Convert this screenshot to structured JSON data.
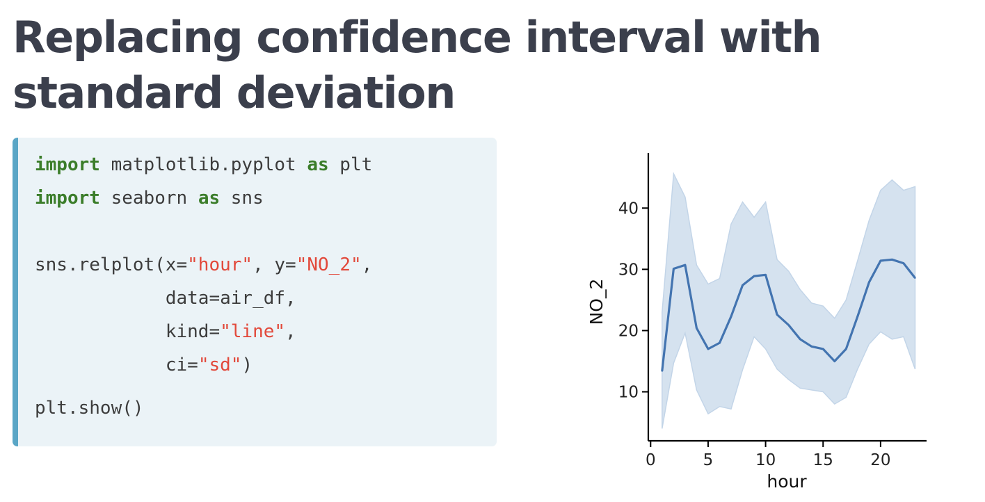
{
  "slide": {
    "title": "Replacing confidence interval with standard deviation"
  },
  "code": {
    "lines": [
      [
        {
          "t": "import",
          "c": "kw"
        },
        {
          "t": " matplotlib.pyplot "
        },
        {
          "t": "as",
          "c": "kw"
        },
        {
          "t": " plt"
        }
      ],
      [
        {
          "t": "import",
          "c": "kw"
        },
        {
          "t": " seaborn "
        },
        {
          "t": "as",
          "c": "kw"
        },
        {
          "t": " sns"
        }
      ],
      [],
      [
        {
          "t": "sns.relplot(x="
        },
        {
          "t": "\"hour\"",
          "c": "str"
        },
        {
          "t": ", y="
        },
        {
          "t": "\"NO_2\"",
          "c": "str"
        },
        {
          "t": ","
        }
      ],
      [
        {
          "t": "            data=air_df,"
        }
      ],
      [
        {
          "t": "            kind="
        },
        {
          "t": "\"line\"",
          "c": "str"
        },
        {
          "t": ","
        }
      ],
      [
        {
          "t": "            ci="
        },
        {
          "t": "\"sd\"",
          "c": "str"
        },
        {
          "t": ")"
        }
      ],
      [
        {
          "t": "plt.show()"
        }
      ]
    ]
  },
  "colors": {
    "line": "#4374b0",
    "band": "#c3d5e8",
    "keyword": "#3b7d2a",
    "string": "#e2483a",
    "code_bg": "#ebf3f7",
    "code_border": "#5aa6c6",
    "title": "#3b3f4c"
  },
  "chart_data": {
    "type": "line",
    "xlabel": "hour",
    "ylabel": "NO_2",
    "xlim": [
      -0.2,
      24
    ],
    "ylim": [
      2,
      49
    ],
    "xticks": [
      0,
      5,
      10,
      15,
      20
    ],
    "yticks": [
      10,
      20,
      30,
      40
    ],
    "grid": false,
    "legend": "none",
    "x": [
      1,
      2,
      3,
      4,
      5,
      6,
      7,
      8,
      9,
      10,
      11,
      12,
      13,
      14,
      15,
      16,
      17,
      18,
      19,
      20,
      21,
      22,
      23
    ],
    "y": [
      13.4,
      30.1,
      30.7,
      20.4,
      17.0,
      18.0,
      22.3,
      27.4,
      28.9,
      29.1,
      22.6,
      20.9,
      18.6,
      17.4,
      17.0,
      15.0,
      17.0,
      22.3,
      27.9,
      31.4,
      31.6,
      31.0,
      28.6
    ],
    "lower": [
      4.0,
      14.7,
      19.6,
      10.3,
      6.4,
      7.6,
      7.2,
      13.6,
      19.0,
      17.0,
      13.7,
      12.0,
      10.6,
      10.3,
      10.0,
      8.0,
      9.1,
      13.7,
      17.8,
      19.8,
      18.6,
      19.0,
      13.7
    ],
    "upper": [
      23.0,
      45.6,
      41.8,
      30.7,
      27.6,
      28.5,
      37.4,
      41.0,
      38.5,
      41.0,
      31.6,
      29.7,
      26.7,
      24.5,
      24.0,
      22.0,
      25.0,
      31.4,
      38.0,
      42.9,
      44.6,
      42.9,
      43.5
    ]
  }
}
